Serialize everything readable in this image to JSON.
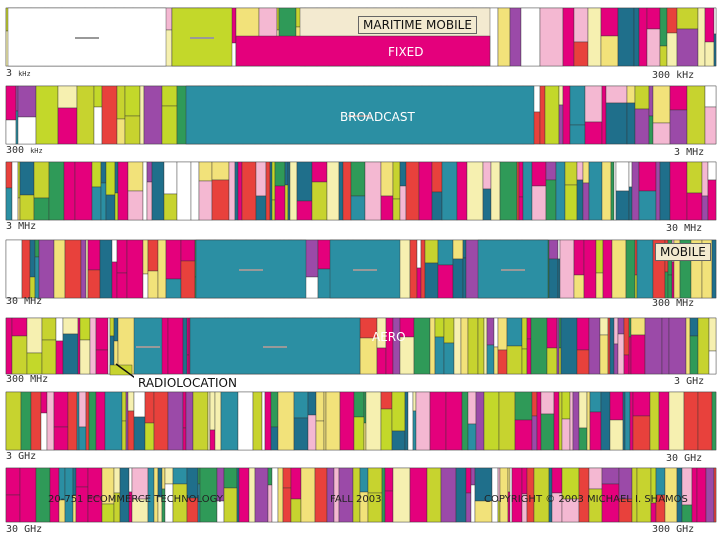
{
  "bands": [
    {
      "start": "3",
      "start_unit": "kHz",
      "end": "300",
      "end_unit": "kHz"
    },
    {
      "start": "300",
      "start_unit": "kHz",
      "end": "3",
      "end_unit": "MHz"
    },
    {
      "start": "3",
      "start_unit": "MHz",
      "end": "30",
      "end_unit": "MHz"
    },
    {
      "start": "30",
      "start_unit": "MHz",
      "end": "300",
      "end_unit": "MHz"
    },
    {
      "start": "300",
      "start_unit": "MHz",
      "end": "3",
      "end_unit": "GHz"
    },
    {
      "start": "3",
      "start_unit": "GHz",
      "end": "30",
      "end_unit": "GHz"
    },
    {
      "start": "30",
      "start_unit": "GHz",
      "end": "300",
      "end_unit": "GHz"
    }
  ],
  "callouts": {
    "maritime_mobile": "MARITIME MOBILE",
    "fixed": "FIXED",
    "broadcast": "BROADCAST",
    "mobile": "MOBILE",
    "aero": "AERO",
    "radiolocation": "RADIOLOCATION"
  },
  "footer": {
    "course": "20-751 ECOMMERCE TECHNOLOGY",
    "term": "FALL 2003",
    "copyright": "COPYRIGHT © 2003 MICHAEL I. SHAMOS"
  },
  "colors": {
    "maritime": "#1f6f8b",
    "fixed": "#e4007c",
    "broadcast": "#2b8fa3",
    "mobile": "#c3d82a",
    "aero": "#f6f0b0",
    "amateur": "#9b4aa8",
    "radiolocation": "#c7d32f",
    "satellite": "#f4b8d2",
    "navigation": "#2f9a58",
    "misc": "#e8413c"
  }
}
